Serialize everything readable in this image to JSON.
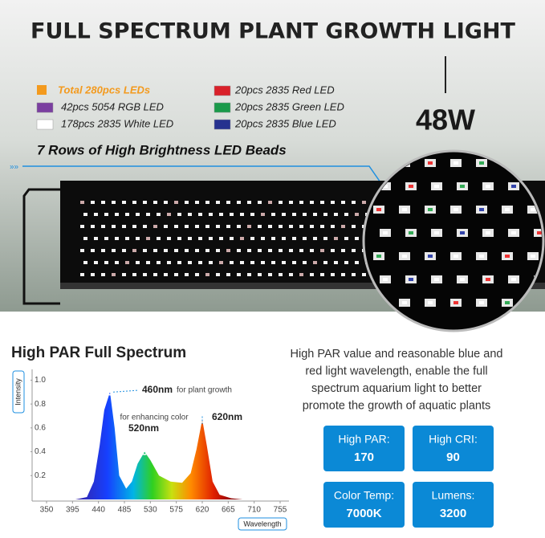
{
  "header": {
    "title": "FULL SPECTRUM PLANT GROWTH LIGHT"
  },
  "led_legend": {
    "total": {
      "label": "Total 280pcs LEDs",
      "color": "#f39a1e"
    },
    "items": [
      {
        "label": "42pcs 5054 RGB LED",
        "color": "#7a3fa0"
      },
      {
        "label": "178pcs 2835 White LED",
        "color": "#ffffff"
      },
      {
        "label": "20pcs 2835 Red LED",
        "color": "#d9212a"
      },
      {
        "label": "20pcs 2835 Green LED",
        "color": "#1a9a4a"
      },
      {
        "label": "20pcs 2835 Blue LED",
        "color": "#26318f"
      }
    ]
  },
  "power": "48W",
  "rows_caption": "7 Rows of High Brightness LED Beads",
  "chart_data": {
    "type": "area",
    "title": "High PAR Full Spectrum",
    "y_label": "Intensity",
    "x_label": "Wavelength",
    "x": [
      400,
      420,
      432,
      442,
      450,
      460,
      468,
      476,
      488,
      498,
      508,
      520,
      530,
      545,
      565,
      585,
      600,
      610,
      620,
      628,
      638,
      650,
      670,
      690
    ],
    "values": [
      0,
      0.02,
      0.15,
      0.45,
      0.75,
      0.9,
      0.6,
      0.2,
      0.09,
      0.15,
      0.3,
      0.4,
      0.33,
      0.2,
      0.15,
      0.14,
      0.22,
      0.42,
      0.67,
      0.45,
      0.15,
      0.04,
      0.01,
      0
    ],
    "xlim": [
      350,
      755
    ],
    "xticks": [
      350,
      395,
      440,
      485,
      530,
      575,
      620,
      665,
      710,
      755
    ],
    "ylim": [
      0,
      1.05
    ],
    "yticks": [
      0.2,
      0.4,
      0.6,
      0.8,
      {
        "value": 1,
        "label": "1.0"
      }
    ],
    "peaks": [
      {
        "x": 460,
        "y": 0.9,
        "label": "460nm",
        "note": "for plant growth"
      },
      {
        "x": 520,
        "y": 0.4,
        "label": "520nm",
        "note": "for enhancing color"
      },
      {
        "x": 620,
        "y": 0.67,
        "label": "620nm"
      }
    ]
  },
  "description": [
    "High PAR value and reasonable blue and",
    "red light wavelength, enable the full",
    "spectrum aquarium light to better",
    "promote the growth of aquatic plants"
  ],
  "specs": [
    {
      "label": "High PAR:",
      "value": 170
    },
    {
      "label": "High CRI:",
      "value": 90
    },
    {
      "label": "Color Temp:",
      "value": "7000K"
    },
    {
      "label": "Lumens:",
      "value": 3200
    }
  ]
}
